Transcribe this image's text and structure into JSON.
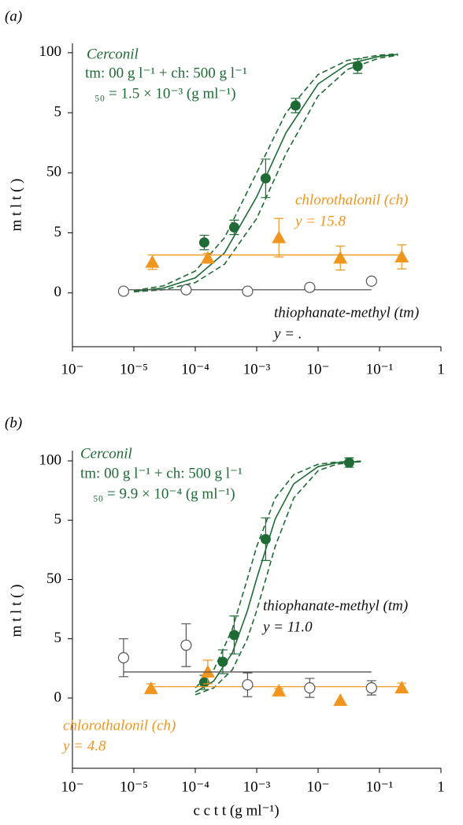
{
  "chart_data": [
    {
      "type": "scatter",
      "label": "(a)",
      "ylabel": "m t l t ( )",
      "xlabel": null,
      "xscale": "log",
      "xlim": [
        1e-06,
        1
      ],
      "xticks": [
        {
          "value": 1e-06,
          "label": "10⁻"
        },
        {
          "value": 1e-05,
          "label": "10⁻⁵"
        },
        {
          "value": 0.0001,
          "label": "10⁻⁴"
        },
        {
          "value": 0.001,
          "label": "10⁻³"
        },
        {
          "value": 0.01,
          "label": "10⁻"
        },
        {
          "value": 0.1,
          "label": "10⁻¹"
        },
        1
      ],
      "ylim": [
        -22.4,
        103.9
      ],
      "yticks": [
        0,
        {
          "value": 25,
          "label": "5"
        },
        50,
        {
          "value": 75,
          "label": "5"
        },
        100
      ],
      "series": [
        {
          "name": "Cerconil",
          "color": "#1e6b35",
          "marker": "filled-circle",
          "formulation": "tm:  00  g l⁻¹ + ch: 500 g l⁻¹",
          "ec50_label": "₅₀ = 1.5 × 10⁻³ (g ml⁻¹)",
          "x": [
            0.00014,
            0.00043,
            0.0014,
            0.0043,
            0.044
          ],
          "values": [
            21,
            27.3,
            47.7,
            78,
            94.4
          ],
          "errors": [
            3,
            3,
            8,
            3,
            3
          ],
          "curves": [
            {
              "style": "solid",
              "x": [
                1e-05,
                3e-05,
                0.0001,
                0.0003,
                0.001,
                0.003,
                0.01,
                0.03,
                0.1,
                0.2
              ],
              "values": [
                0.66,
                2.0,
                6.25,
                16.7,
                40,
                66.7,
                87,
                95.2,
                98.5,
                99.3
              ]
            },
            {
              "style": "dashed",
              "x": [
                1e-05,
                3e-05,
                0.0001,
                0.0003,
                0.001,
                0.003,
                0.01,
                0.03,
                0.1,
                0.2
              ],
              "values": [
                1.0,
                2.9,
                9.1,
                23,
                50,
                75,
                90.9,
                96.8,
                99.0,
                99.5
              ]
            },
            {
              "style": "dashed",
              "x": [
                1e-05,
                3e-05,
                0.0001,
                0.0003,
                0.001,
                0.003,
                0.01,
                0.03,
                0.1,
                0.2
              ],
              "values": [
                0.45,
                1.3,
                4.3,
                12,
                31,
                58,
                82,
                93,
                97.8,
                98.9
              ]
            }
          ]
        },
        {
          "name": "chlorothalonil (ch)",
          "color": "#f0961e",
          "marker": "triangle",
          "x": [
            2e-05,
            0.00016,
            0.0023,
            0.023,
            0.23
          ],
          "values": [
            12.8,
            14.5,
            23,
            14.5,
            15
          ],
          "errors": [
            3,
            2,
            8,
            5,
            5
          ],
          "fit_value": 15.8,
          "fit_label": "y = 15.8",
          "fit_range": [
            2e-05,
            0.23
          ]
        },
        {
          "name": "thiophanate-methyl (tm)",
          "color": "#555555",
          "label_color": "#111111",
          "marker": "open-circle",
          "x": [
            6.8e-06,
            7.1e-05,
            0.00071,
            0.0073,
            0.074
          ],
          "values": [
            0.7,
            1.3,
            0.7,
            2.3,
            4.9
          ],
          "errors": [
            0,
            0,
            0,
            0,
            0
          ],
          "fit_value": 1.3,
          "fit_label": "y =  .",
          "fit_range": [
            6.8e-06,
            0.074
          ]
        }
      ]
    },
    {
      "type": "scatter",
      "label": "(b)",
      "ylabel": "m t l t ( )",
      "xlabel": "c c t t   (g     ml⁻¹)",
      "xscale": "log",
      "xlim": [
        1e-06,
        1
      ],
      "xticks": [
        {
          "value": 1e-06,
          "label": "10⁻"
        },
        {
          "value": 1e-05,
          "label": "10⁻⁵"
        },
        {
          "value": 0.0001,
          "label": "10⁻⁴"
        },
        {
          "value": 0.001,
          "label": "10⁻³"
        },
        {
          "value": 0.01,
          "label": "10⁻"
        },
        {
          "value": 0.1,
          "label": "10⁻¹"
        },
        1
      ],
      "ylim": [
        -29.6,
        104.3
      ],
      "yticks": [
        0,
        {
          "value": 25,
          "label": "5"
        },
        50,
        {
          "value": 75,
          "label": "5"
        },
        100
      ],
      "series": [
        {
          "name": "Cerconil",
          "color": "#1e6b35",
          "marker": "filled-circle",
          "formulation": "tm:  00  g l⁻¹ + ch: 500 g l⁻¹",
          "ec50_label": "₅₀ = 9.9 × 10⁻⁴ (g ml⁻¹)",
          "x": [
            0.00014,
            0.00028,
            0.00043,
            0.0014,
            0.032
          ],
          "values": [
            6.6,
            15.3,
            26.6,
            67,
            99.3
          ],
          "errors": [
            3,
            5,
            8,
            9,
            2
          ],
          "curves": [
            {
              "style": "solid",
              "x": [
                0.0001,
                0.0002,
                0.0004,
                0.0007,
                0.001,
                0.002,
                0.004,
                0.01,
                0.02,
                0.05
              ],
              "values": [
                2.5,
                7.2,
                19.0,
                36.5,
                50.4,
                75.5,
                90.3,
                97.6,
                99.2,
                99.8
              ]
            },
            {
              "style": "dashed",
              "x": [
                0.0001,
                0.0002,
                0.0004,
                0.0007,
                0.001,
                0.002,
                0.004,
                0.01,
                0.02,
                0.05
              ],
              "values": [
                4.3,
                11.9,
                29.0,
                50,
                63.9,
                84.3,
                94.2,
                98.6,
                99.5,
                99.9
              ]
            },
            {
              "style": "dashed",
              "x": [
                0.0001,
                0.0002,
                0.0004,
                0.0007,
                0.001,
                0.002,
                0.004,
                0.01,
                0.02,
                0.05
              ],
              "values": [
                1.4,
                4.3,
                11.9,
                24.8,
                36.9,
                63.9,
                84.3,
                95.9,
                98.6,
                99.7
              ]
            }
          ]
        },
        {
          "name": "chlorothalonil (ch)",
          "color": "#f0961e",
          "marker": "triangle",
          "x": [
            1.9e-05,
            0.00016,
            0.0023,
            0.023,
            0.23
          ],
          "values": [
            4.0,
            11,
            3.0,
            -1.0,
            4.3
          ],
          "errors": [
            2,
            5,
            1,
            0,
            2
          ],
          "fit_value": 4.8,
          "fit_label": "y = 4.8",
          "fit_range": [
            1.9e-05,
            0.23
          ]
        },
        {
          "name": "thiophanate-methyl (tm)",
          "color": "#555555",
          "label_color": "#111111",
          "marker": "open-circle",
          "x": [
            6.8e-06,
            7.1e-05,
            0.00071,
            0.0073,
            0.074
          ],
          "values": [
            17,
            22.3,
            5.6,
            4.3,
            4.3
          ],
          "errors": [
            8,
            9,
            5,
            4,
            3
          ],
          "fit_value": 11.0,
          "fit_label": "y = 11.0",
          "fit_range": [
            6.8e-06,
            0.074
          ]
        }
      ]
    }
  ]
}
